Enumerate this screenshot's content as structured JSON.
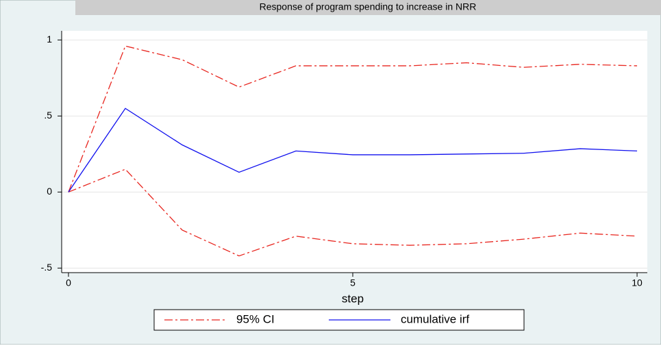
{
  "chart_data": {
    "type": "line",
    "title": "Response of program spending to increase in NRR",
    "xlabel": "step",
    "x": [
      0,
      1,
      2,
      3,
      4,
      5,
      6,
      7,
      8,
      9,
      10
    ],
    "series": [
      {
        "name": "95% CI",
        "color": "#e8251e",
        "dash": "dash-dot",
        "upper": [
          0,
          0.96,
          0.87,
          0.69,
          0.83,
          0.83,
          0.83,
          0.85,
          0.82,
          0.84,
          0.83
        ],
        "lower": [
          0,
          0.15,
          -0.25,
          -0.42,
          -0.29,
          -0.34,
          -0.35,
          -0.34,
          -0.31,
          -0.27,
          -0.29
        ]
      },
      {
        "name": "cumulative irf",
        "color": "#1010ee",
        "dash": "solid",
        "values": [
          0,
          0.55,
          0.31,
          0.13,
          0.27,
          0.245,
          0.245,
          0.25,
          0.255,
          0.285,
          0.27
        ]
      }
    ],
    "xlim": [
      -0.12,
      10.18
    ],
    "xticks": [
      0,
      5,
      10
    ],
    "ylim": [
      -0.53,
      1.06
    ],
    "yticks": [
      {
        "value": -0.5,
        "label": "-.5"
      },
      0,
      {
        "value": 0.5,
        "label": ".5"
      },
      1
    ],
    "grid": true
  }
}
